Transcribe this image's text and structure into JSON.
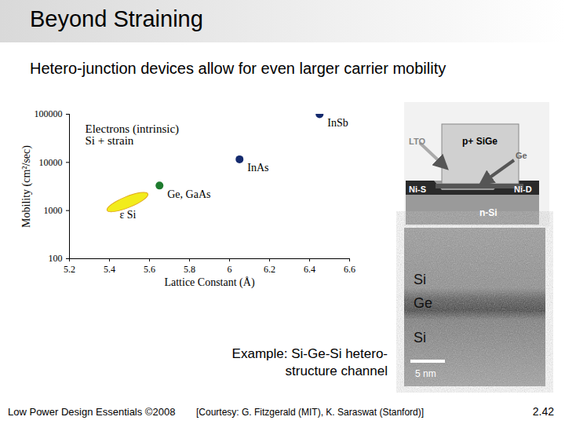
{
  "slide": {
    "title": "Beyond Straining",
    "subtitle": "Hetero-junction devices allow for even larger carrier mobility",
    "caption": [
      "Example: Si-Ge-Si hetero-",
      "structure channel"
    ],
    "footer": "Low Power Design Essentials ©2008",
    "credit": "[Courtesy: G. Fitzgerald (MIT), K. Saraswat (Stanford)]",
    "page_number": "2.42",
    "device": {
      "lto": "LTO",
      "gate": "p+ SiGe",
      "channel": "Ge",
      "source": "Ni-S",
      "drain": "Ni-D",
      "substrate": "n-Si"
    },
    "tem": {
      "layers": [
        "Si",
        "Ge",
        "Si"
      ],
      "scale_bar": "5 nm"
    }
  },
  "chart_data": {
    "type": "scatter",
    "x_label": "Lattice Constant (Å)",
    "y_label": "Mobility (cm²/sec)",
    "annotations": [
      "Electrons (intrinsic)",
      "Si + strain"
    ],
    "log": "y",
    "xlim": [
      5.2,
      6.6
    ],
    "xticks": [
      5.2,
      5.4,
      5.6,
      5.8,
      6,
      6.2,
      6.4,
      6.6
    ],
    "ylim": [
      100,
      100000
    ],
    "yticks": [
      100,
      1000,
      10000,
      100000
    ],
    "series": [
      {
        "name": "ε Si",
        "color": "#f2ec1c",
        "marker": "ellipse",
        "x": [
          5.49
        ],
        "values": [
          1500
        ]
      },
      {
        "name": "Ge, GaAs",
        "color": "#1e7b2e",
        "marker": "circle",
        "x": [
          5.65
        ],
        "values": [
          3300
        ]
      },
      {
        "name": "InAs",
        "color": "#142a6e",
        "marker": "circle",
        "x": [
          6.05
        ],
        "values": [
          11600
        ]
      },
      {
        "name": "InSb",
        "color": "#142a6e",
        "marker": "circle",
        "x": [
          6.45
        ],
        "values": [
          100000
        ]
      }
    ]
  }
}
